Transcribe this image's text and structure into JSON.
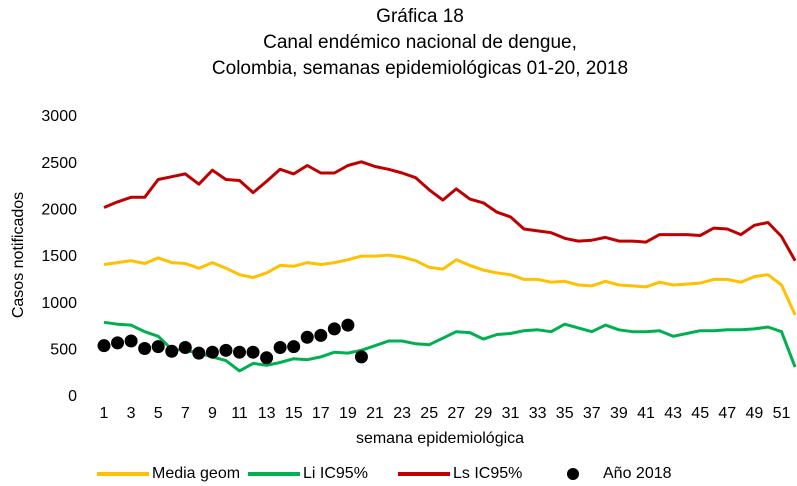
{
  "chart_data": {
    "type": "line",
    "title": [
      "Gráfica 18",
      "Canal endémico nacional de dengue,",
      "Colombia, semanas epidemiológicas 01-20, 2018"
    ],
    "x_label": "semana epidemiológica",
    "y_label": "Casos notificados",
    "categories": [
      1,
      null,
      3,
      null,
      5,
      null,
      7,
      null,
      9,
      null,
      11,
      null,
      13,
      null,
      15,
      null,
      17,
      null,
      19,
      null,
      21,
      null,
      23,
      null,
      25,
      null,
      27,
      null,
      29,
      null,
      31,
      null,
      33,
      null,
      35,
      null,
      37,
      null,
      39,
      null,
      41,
      null,
      43,
      null,
      45,
      null,
      47,
      null,
      49,
      null,
      51,
      null
    ],
    "ylim": [
      0,
      3000
    ],
    "yticks": [
      0,
      500,
      1000,
      1500,
      2000,
      2500,
      3000
    ],
    "grid": false,
    "legend": "bottom",
    "series": [
      {
        "name": "Media geom",
        "color": "#ffc000",
        "kind": "line",
        "values": [
          1420,
          1440,
          1460,
          1430,
          1490,
          1440,
          1430,
          1380,
          1440,
          1380,
          1310,
          1280,
          1330,
          1410,
          1400,
          1440,
          1420,
          1440,
          1470,
          1510,
          1510,
          1520,
          1500,
          1460,
          1390,
          1370,
          1470,
          1410,
          1360,
          1330,
          1310,
          1260,
          1260,
          1230,
          1240,
          1200,
          1190,
          1240,
          1200,
          1190,
          1180,
          1230,
          1200,
          1210,
          1220,
          1260,
          1260,
          1230,
          1290,
          1310,
          1200,
          880
        ]
      },
      {
        "name": "Li IC95%",
        "color": "#00b050",
        "kind": "line",
        "values": [
          800,
          780,
          770,
          700,
          650,
          510,
          500,
          470,
          430,
          390,
          280,
          360,
          340,
          370,
          410,
          400,
          430,
          480,
          470,
          500,
          550,
          600,
          600,
          570,
          560,
          630,
          700,
          690,
          620,
          670,
          680,
          710,
          720,
          700,
          780,
          740,
          700,
          770,
          720,
          700,
          700,
          710,
          650,
          680,
          710,
          710,
          720,
          720,
          730,
          750,
          700,
          320
        ]
      },
      {
        "name": "Ls IC95%",
        "color": "#c00000",
        "kind": "line",
        "values": [
          2030,
          2090,
          2140,
          2140,
          2330,
          2360,
          2390,
          2280,
          2430,
          2330,
          2320,
          2190,
          2310,
          2440,
          2390,
          2480,
          2400,
          2400,
          2480,
          2520,
          2470,
          2440,
          2400,
          2350,
          2220,
          2110,
          2230,
          2120,
          2080,
          1980,
          1930,
          1800,
          1780,
          1760,
          1700,
          1670,
          1680,
          1710,
          1670,
          1670,
          1660,
          1740,
          1740,
          1740,
          1730,
          1810,
          1800,
          1740,
          1840,
          1870,
          1720,
          1460
        ]
      },
      {
        "name": "Año 2018",
        "color": "#000000",
        "kind": "dots",
        "values": [
          550,
          580,
          600,
          520,
          540,
          490,
          530,
          470,
          480,
          500,
          480,
          480,
          420,
          530,
          540,
          640,
          660,
          730,
          770,
          430,
          null,
          null,
          null,
          null,
          null,
          null,
          null,
          null,
          null,
          null,
          null,
          null,
          null,
          null,
          null,
          null,
          null,
          null,
          null,
          null,
          null,
          null,
          null,
          null,
          null,
          null,
          null,
          null,
          null,
          null,
          null,
          null
        ]
      }
    ]
  }
}
